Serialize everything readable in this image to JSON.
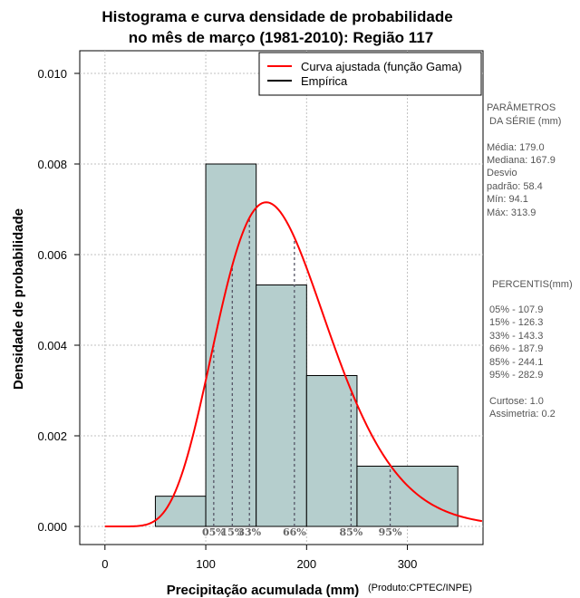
{
  "chart_data": {
    "type": "histogram",
    "title_line1": "Histograma e curva densidade de probabilidade",
    "title_line2": "no mês de março (1981-2010): Região 117",
    "xlabel": "Precipitação acumulada (mm)",
    "ylabel": "Densidade de probabilidade",
    "credit": "(Produto:CPTEC/INPE)",
    "xlim": [
      -25,
      375
    ],
    "ylim": [
      -0.0004,
      0.0105
    ],
    "x_ticks": [
      0,
      100,
      200,
      300
    ],
    "y_ticks": [
      0.0,
      0.002,
      0.004,
      0.006,
      0.008,
      0.01
    ],
    "y_tick_labels": [
      "0.000",
      "0.002",
      "0.004",
      "0.006",
      "0.008",
      "0.010"
    ],
    "bins": [
      {
        "start": 50,
        "end": 100,
        "density": 0.000667
      },
      {
        "start": 100,
        "end": 150,
        "density": 0.008
      },
      {
        "start": 150,
        "end": 200,
        "density": 0.00533
      },
      {
        "start": 200,
        "end": 250,
        "density": 0.00333
      },
      {
        "start": 250,
        "end": 350,
        "density": 0.00133
      }
    ],
    "gamma_fit": {
      "mean": 179.0,
      "sd": 58.4
    },
    "percentile_lines": [
      {
        "label": "05%",
        "value": 107.9
      },
      {
        "label": "15%",
        "value": 126.3
      },
      {
        "label": "33%",
        "value": 143.3
      },
      {
        "label": "66%",
        "value": 187.9
      },
      {
        "label": "85%",
        "value": 244.1
      },
      {
        "label": "95%",
        "value": 282.9
      }
    ],
    "legend": [
      {
        "label": "Curva ajustada (função Gama)",
        "color": "#ff0000"
      },
      {
        "label": "Empírica",
        "color": "#000000"
      }
    ],
    "colors": {
      "bar_fill": "#b5cecd",
      "curve": "#ff0000",
      "grid": "#c0c0c0",
      "percentile": "#555566"
    }
  },
  "side_panel": {
    "params_title_line1": "PARÂMETROS",
    "params_title_line2": "DA SÉRIE (mm)",
    "media": "Média:  179.0",
    "mediana": "Mediana:  167.9",
    "desvio1": "Desvio",
    "desvio2": "padrão:  58.4",
    "min": "Mín:  94.1",
    "max": "Máx:  313.9",
    "pct_title": "PERCENTIS(mm)",
    "p05": "05% -  107.9",
    "p15": "15% -  126.3",
    "p33": "33% -  143.3",
    "p66": "66% -  187.9",
    "p85": "85% -  244.1",
    "p95": "95% -  282.9",
    "curtose": "Curtose:  1.0",
    "assimetria": "Assimetria:  0.2"
  }
}
